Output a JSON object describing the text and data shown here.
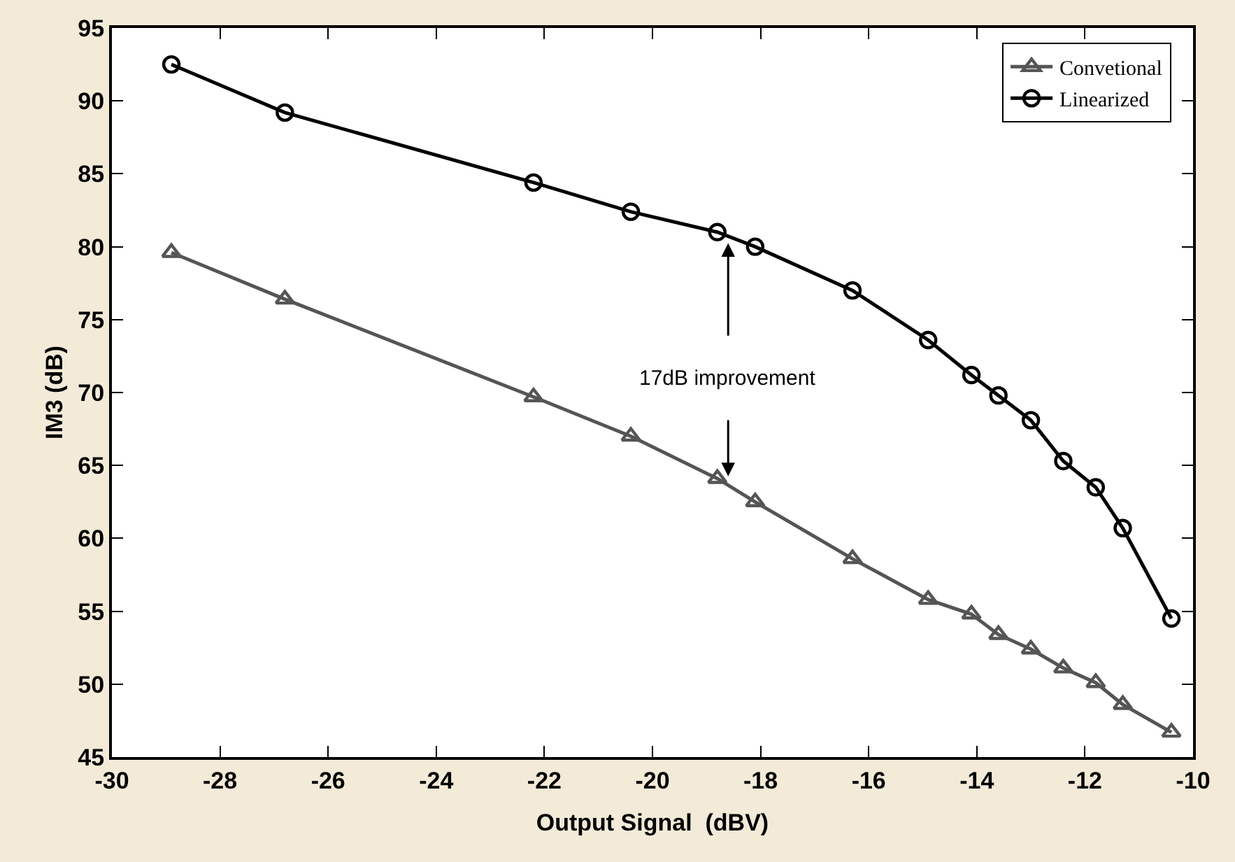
{
  "chart_data": {
    "type": "line",
    "xlabel": "Output Signal  (dBV)",
    "ylabel": "IM3 (dB)",
    "x": [
      -28.9,
      -26.8,
      -22.2,
      -20.4,
      -18.8,
      -18.1,
      -16.3,
      -14.9,
      -14.1,
      -13.6,
      -13.0,
      -12.4,
      -11.8,
      -11.3,
      -10.4
    ],
    "series": [
      {
        "name": "Convetional",
        "color": "#555555",
        "marker": "triangle",
        "values": [
          79.6,
          76.4,
          69.7,
          67.0,
          64.1,
          62.5,
          58.6,
          55.8,
          54.8,
          53.4,
          52.4,
          51.1,
          50.1,
          48.6,
          46.7
        ]
      },
      {
        "name": "Linearized",
        "color": "#000000",
        "marker": "circle",
        "values": [
          92.5,
          89.2,
          84.4,
          82.4,
          81.0,
          80.0,
          77.0,
          73.6,
          71.2,
          69.8,
          68.1,
          65.3,
          63.5,
          60.7,
          54.5
        ]
      }
    ],
    "xlim": [
      -30,
      -10
    ],
    "xticks": [
      -30,
      -28,
      -26,
      -24,
      -22,
      -20,
      -18,
      -16,
      -14,
      -12,
      -10
    ],
    "ylim": [
      45,
      95
    ],
    "yticks": [
      45,
      50,
      55,
      60,
      65,
      70,
      75,
      80,
      85,
      90,
      95
    ],
    "legend": "top right",
    "line_style": "solid",
    "annotations": [
      "17dB improvement"
    ]
  }
}
